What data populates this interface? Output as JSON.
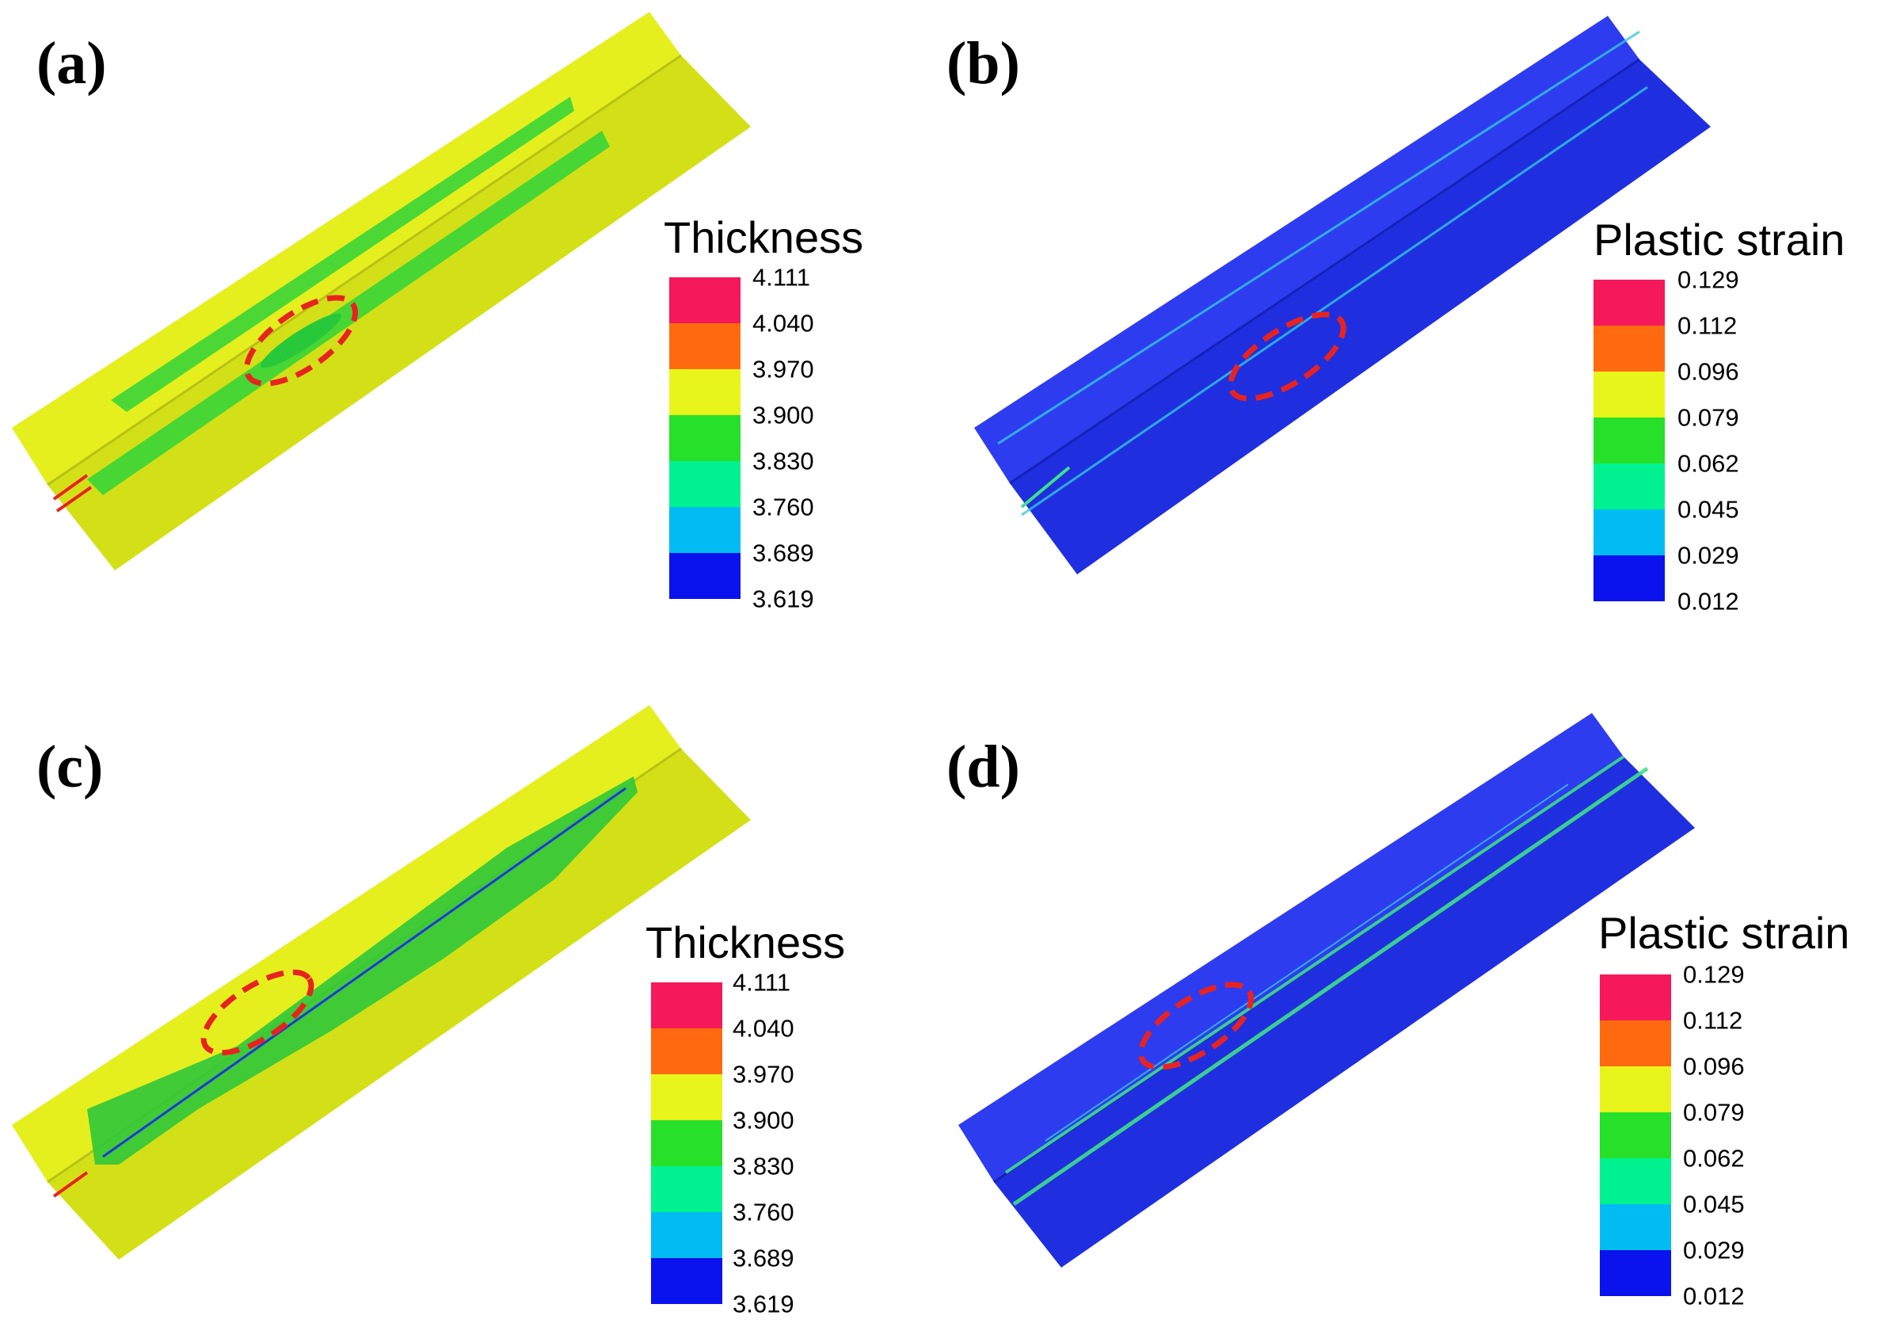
{
  "panels": {
    "a": {
      "label": "(a)",
      "legend_title": "Thickness",
      "body_color": "#d4e017",
      "rim_color": "#e6ef1e",
      "highlight": "green streaks"
    },
    "b": {
      "label": "(b)",
      "legend_title": "Plastic strain",
      "body_color": "#1f2fe0",
      "rim_color": "#2e3cf0"
    },
    "c": {
      "label": "(c)",
      "legend_title": "Thickness",
      "body_color": "#d4e017",
      "rim_color": "#e6ef1e"
    },
    "d": {
      "label": "(d)",
      "legend_title": "Plastic strain",
      "body_color": "#1f2fe0",
      "rim_color": "#2e3cf0"
    }
  },
  "scales": {
    "thickness": {
      "ticks": [
        "4.111",
        "4.040",
        "3.970",
        "3.900",
        "3.830",
        "3.760",
        "3.689",
        "3.619"
      ],
      "colors": [
        "#f5185a",
        "#ff6a10",
        "#e8f51a",
        "#27e02a",
        "#00f290",
        "#00bcf2",
        "#0a12ee"
      ]
    },
    "strain": {
      "ticks": [
        "0.129",
        "0.112",
        "0.096",
        "0.079",
        "0.062",
        "0.045",
        "0.029",
        "0.012"
      ],
      "colors": [
        "#f5185a",
        "#ff6a10",
        "#e8f51a",
        "#27e02a",
        "#00f290",
        "#00bcf2",
        "#0a12ee"
      ]
    }
  },
  "annotations": {
    "marker_color": "#e8231f",
    "marker_style": "dashed ellipse"
  }
}
